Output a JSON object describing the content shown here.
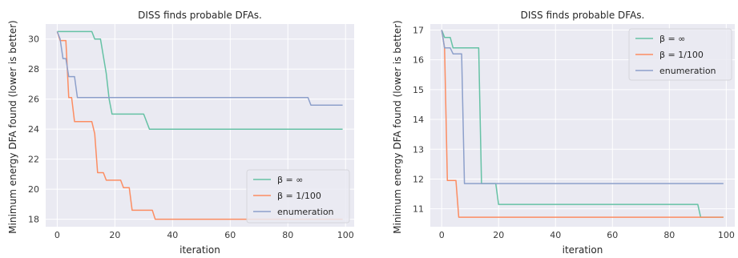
{
  "colors": {
    "background": "#eaeaf2",
    "grid": "#ffffff",
    "series": [
      "#66c2a5",
      "#fc8d62",
      "#8da0cb"
    ]
  },
  "chart_data": [
    {
      "type": "line",
      "title": "DISS finds probable DFAs.",
      "xlabel": "iteration",
      "ylabel": "Minimum energy DFA found (lower is better)",
      "xlim": [
        -4,
        103
      ],
      "ylim": [
        17.5,
        31.0
      ],
      "xticks": [
        0,
        20,
        40,
        60,
        80,
        100
      ],
      "yticks": [
        18,
        20,
        22,
        24,
        26,
        28,
        30
      ],
      "grid": true,
      "legend_position": "lower-right",
      "series": [
        {
          "name": "β = ∞",
          "color": "#66c2a5",
          "x": [
            0,
            12,
            13,
            15,
            17,
            18,
            19,
            30,
            32,
            99
          ],
          "y": [
            30.5,
            30.5,
            30.0,
            30.0,
            27.7,
            26.0,
            25.0,
            25.0,
            24.0,
            24.0
          ]
        },
        {
          "name": "β = 1/100",
          "color": "#fc8d62",
          "x": [
            0,
            1,
            2,
            3,
            4,
            5,
            6,
            12,
            13,
            14,
            16,
            17,
            18,
            22,
            23,
            25,
            26,
            27,
            28,
            33,
            34,
            35,
            99
          ],
          "y": [
            30.5,
            29.9,
            29.9,
            29.9,
            26.1,
            26.1,
            24.5,
            24.5,
            23.7,
            21.1,
            21.1,
            20.6,
            20.6,
            20.6,
            20.1,
            20.1,
            18.6,
            18.6,
            18.6,
            18.6,
            18.0,
            18.0,
            18.0
          ]
        },
        {
          "name": "enumeration",
          "color": "#8da0cb",
          "x": [
            0,
            1,
            2,
            3,
            4,
            5,
            6,
            7,
            8,
            87,
            88,
            99
          ],
          "y": [
            30.5,
            30.0,
            28.7,
            28.7,
            27.5,
            27.5,
            27.5,
            26.1,
            26.1,
            26.1,
            25.6,
            25.6
          ]
        }
      ]
    },
    {
      "type": "line",
      "title": "DISS finds probable DFAs.",
      "xlabel": "iteration",
      "ylabel": "Minimum energy DFA found (lower is better)",
      "xlim": [
        -4,
        103
      ],
      "ylim": [
        10.4,
        17.2
      ],
      "xticks": [
        0,
        20,
        40,
        60,
        80,
        100
      ],
      "yticks": [
        11,
        12,
        13,
        14,
        15,
        16,
        17
      ],
      "grid": true,
      "legend_position": "top-right",
      "series": [
        {
          "name": "β = ∞",
          "color": "#66c2a5",
          "x": [
            0,
            1,
            3,
            4,
            13,
            14,
            19,
            20,
            90,
            91,
            99
          ],
          "y": [
            17.0,
            16.75,
            16.75,
            16.4,
            16.4,
            11.85,
            11.85,
            11.15,
            11.15,
            10.72,
            10.72
          ]
        },
        {
          "name": "β = 1/100",
          "color": "#fc8d62",
          "x": [
            0,
            1,
            2,
            5,
            6,
            99
          ],
          "y": [
            17.0,
            16.4,
            11.95,
            11.95,
            10.72,
            10.72
          ]
        },
        {
          "name": "enumeration",
          "color": "#8da0cb",
          "x": [
            0,
            1,
            2,
            3,
            4,
            5,
            6,
            7,
            8,
            9,
            99
          ],
          "y": [
            17.0,
            16.4,
            16.4,
            16.4,
            16.2,
            16.2,
            16.2,
            16.2,
            11.85,
            11.85,
            11.85
          ]
        }
      ]
    }
  ]
}
